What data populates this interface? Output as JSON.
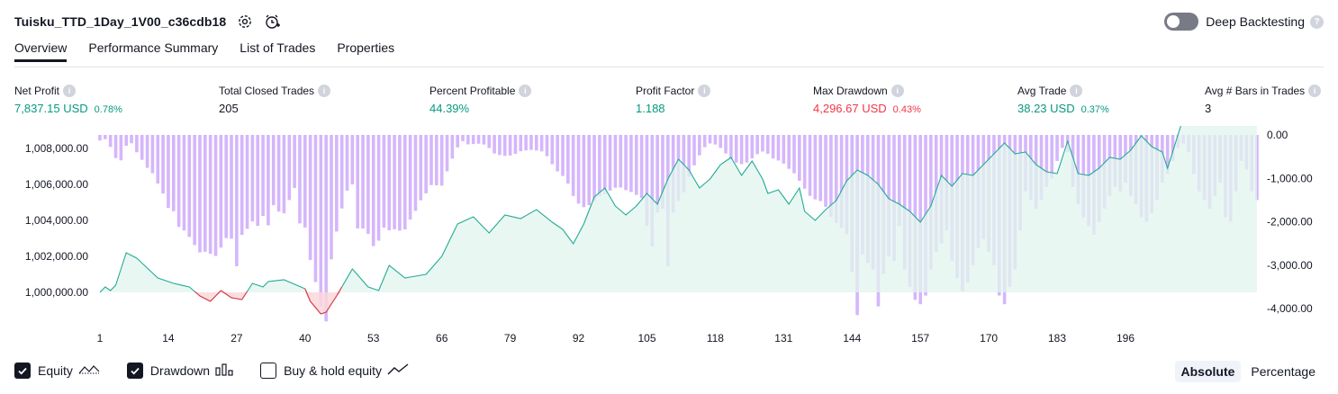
{
  "header": {
    "strategy_name": "Tuisku_TTD_1Day_1V00_c36cdb18",
    "deep_backtesting_label": "Deep Backtesting"
  },
  "tabs": [
    {
      "label": "Overview",
      "active": true
    },
    {
      "label": "Performance Summary"
    },
    {
      "label": "List of Trades"
    },
    {
      "label": "Properties"
    }
  ],
  "stats": [
    {
      "label": "Net Profit",
      "value": "7,837.15 USD",
      "pct": "0.78%",
      "color": "green"
    },
    {
      "label": "Total Closed Trades",
      "value": "205",
      "pct": "",
      "color": "dark"
    },
    {
      "label": "Percent Profitable",
      "value": "44.39%",
      "pct": "",
      "color": "green"
    },
    {
      "label": "Profit Factor",
      "value": "1.188",
      "pct": "",
      "color": "green"
    },
    {
      "label": "Max Drawdown",
      "value": "4,296.67 USD",
      "pct": "0.43%",
      "color": "red"
    },
    {
      "label": "Avg Trade",
      "value": "38.23 USD",
      "pct": "0.37%",
      "color": "green"
    },
    {
      "label": "Avg # Bars in Trades",
      "value": "3",
      "pct": "",
      "color": "dark"
    }
  ],
  "legend": {
    "equity_label": "Equity",
    "drawdown_label": "Drawdown",
    "buyhold_label": "Buy & hold equity"
  },
  "mode": {
    "absolute": "Absolute",
    "percentage": "Percentage"
  },
  "colors": {
    "equity_line": "#22ab94",
    "equity_fill": "#e1f4ee",
    "equity_neg": "#f23645",
    "drawdown_bar": "#d5b6fb",
    "accent": "#131722"
  },
  "chart_data": {
    "type": "area",
    "x_ticks": [
      "1",
      "14",
      "27",
      "40",
      "53",
      "66",
      "79",
      "92",
      "105",
      "118",
      "131",
      "144",
      "157",
      "170",
      "183",
      "196"
    ],
    "y_left_ticks": [
      "1,008,000.00",
      "1,006,000.00",
      "1,004,000.00",
      "1,002,000.00",
      "1,000,000.00"
    ],
    "y_left_values": [
      1008000,
      1006000,
      1004000,
      1002000,
      1000000
    ],
    "y_right_ticks": [
      "0.00",
      "-1,000.00",
      "-2,000.00",
      "-3,000.00",
      "-4,000.00"
    ],
    "y_right_values": [
      0,
      -1000,
      -2000,
      -3000,
      -4000
    ],
    "equity_base": 1000000,
    "equity_knots": [
      [
        1,
        1000000
      ],
      [
        2,
        1000300
      ],
      [
        3,
        1000100
      ],
      [
        4,
        1000400
      ],
      [
        6,
        1002200
      ],
      [
        8,
        1001900
      ],
      [
        12,
        1000800
      ],
      [
        15,
        1000500
      ],
      [
        18,
        1000300
      ],
      [
        20,
        999800
      ],
      [
        22,
        999500
      ],
      [
        24,
        1000100
      ],
      [
        26,
        999700
      ],
      [
        28,
        999600
      ],
      [
        30,
        1000500
      ],
      [
        32,
        1000300
      ],
      [
        33,
        1000600
      ],
      [
        36,
        1000700
      ],
      [
        40,
        1000200
      ],
      [
        41,
        999500
      ],
      [
        43,
        998800
      ],
      [
        44,
        998900
      ],
      [
        46,
        999800
      ],
      [
        49,
        1001300
      ],
      [
        52,
        1000300
      ],
      [
        54,
        1000100
      ],
      [
        56,
        1001500
      ],
      [
        59,
        1000800
      ],
      [
        63,
        1001000
      ],
      [
        66,
        1002000
      ],
      [
        69,
        1003800
      ],
      [
        72,
        1004200
      ],
      [
        75,
        1003300
      ],
      [
        78,
        1004300
      ],
      [
        81,
        1004100
      ],
      [
        84,
        1004600
      ],
      [
        87,
        1003900
      ],
      [
        89,
        1003500
      ],
      [
        91,
        1002700
      ],
      [
        93,
        1003800
      ],
      [
        95,
        1005300
      ],
      [
        97,
        1005800
      ],
      [
        99,
        1004800
      ],
      [
        101,
        1004300
      ],
      [
        103,
        1004800
      ],
      [
        105,
        1005500
      ],
      [
        107,
        1004900
      ],
      [
        109,
        1006300
      ],
      [
        111,
        1007400
      ],
      [
        113,
        1006800
      ],
      [
        115,
        1005800
      ],
      [
        117,
        1006300
      ],
      [
        119,
        1007100
      ],
      [
        121,
        1007500
      ],
      [
        123,
        1006500
      ],
      [
        125,
        1007300
      ],
      [
        127,
        1006300
      ],
      [
        128,
        1005500
      ],
      [
        130,
        1005700
      ],
      [
        132,
        1004900
      ],
      [
        134,
        1005800
      ],
      [
        135,
        1004500
      ],
      [
        137,
        1004000
      ],
      [
        139,
        1004600
      ],
      [
        141,
        1005100
      ],
      [
        143,
        1006200
      ],
      [
        145,
        1006800
      ],
      [
        147,
        1006500
      ],
      [
        149,
        1006000
      ],
      [
        151,
        1005200
      ],
      [
        153,
        1004900
      ],
      [
        155,
        1004500
      ],
      [
        157,
        1003900
      ],
      [
        159,
        1004800
      ],
      [
        161,
        1006500
      ],
      [
        163,
        1005900
      ],
      [
        165,
        1006600
      ],
      [
        167,
        1006500
      ],
      [
        169,
        1007100
      ],
      [
        171,
        1007700
      ],
      [
        173,
        1008300
      ],
      [
        175,
        1007700
      ],
      [
        177,
        1007800
      ],
      [
        179,
        1007100
      ],
      [
        181,
        1006700
      ],
      [
        183,
        1006600
      ],
      [
        185,
        1008400
      ],
      [
        187,
        1006600
      ],
      [
        189,
        1006500
      ],
      [
        191,
        1006900
      ],
      [
        193,
        1007500
      ],
      [
        195,
        1007400
      ],
      [
        197,
        1007900
      ],
      [
        199,
        1008700
      ],
      [
        201,
        1008100
      ],
      [
        203,
        1007800
      ],
      [
        204,
        1006900
      ],
      [
        205,
        1007837
      ]
    ],
    "drawdown": [
      -129,
      -98,
      -277,
      -534,
      -586,
      -251,
      -192,
      -400,
      -574,
      -758,
      -882,
      -1121,
      -1350,
      -1681,
      -1758,
      -2119,
      -2202,
      -2351,
      -2538,
      -2706,
      -2692,
      -2739,
      -2789,
      -2598,
      -2376,
      -2391,
      -3025,
      -2303,
      -2162,
      -1995,
      -2095,
      -1867,
      -2082,
      -1617,
      -1766,
      -1805,
      -1501,
      -1223,
      -2038,
      -2133,
      -2880,
      -3389,
      -3957,
      -4296,
      -2866,
      -2226,
      -1694,
      -1282,
      -1142,
      -2154,
      -2155,
      -2281,
      -2559,
      -2436,
      -2138,
      -2196,
      -2173,
      -2205,
      -2176,
      -1949,
      -1749,
      -1505,
      -1346,
      -1155,
      -1159,
      -1169,
      -839,
      -547,
      -288,
      -144,
      -217,
      -210,
      -202,
      -221,
      -301,
      -427,
      -464,
      -481,
      -473,
      -436,
      -375,
      -356,
      -345,
      -358,
      -379,
      -490,
      -675,
      -839,
      -944,
      -1121,
      -1405,
      -1583,
      -1664,
      -1619,
      -1525,
      -1410,
      -1367,
      -1282,
      -1216,
      -1212,
      -1271,
      -1314,
      -1382,
      -1455,
      -2098,
      -2566,
      -1787,
      -1702,
      -3027,
      -1792,
      -1525,
      -1325,
      -965,
      -700,
      -470,
      -282,
      -197,
      -221,
      -298,
      -427,
      -572,
      -638,
      -674,
      -637,
      -542,
      -443,
      -382,
      -434,
      -542,
      -589,
      -660,
      -781,
      -883,
      -1058,
      -1239,
      -1404,
      -1484,
      -1524,
      -1656,
      -1889,
      -2030,
      -2142,
      -2285,
      -3150,
      -4150,
      -2750,
      -2950,
      -3100,
      -3950,
      -3200,
      -2800,
      -2900,
      -2100,
      -3100,
      -3500,
      -3800,
      -3900,
      -3700,
      -3100,
      -2700,
      -2500,
      -2200,
      -2900,
      -3300,
      -3600,
      -3400,
      -3000,
      -2600,
      -2400,
      -2700,
      -3000,
      -3700,
      -3900,
      -3500,
      -3100,
      -2200,
      -1300,
      -1500,
      -1700,
      -1500,
      -1200,
      -1000,
      -600,
      -300,
      -400,
      -1200,
      -1600,
      -1900,
      -2100,
      -2300,
      -2000,
      -1700,
      -1400,
      -1200,
      -1300,
      -1100,
      -1400,
      -1600,
      -1900,
      -2000,
      -1800,
      -1500,
      -1100,
      -900,
      -600,
      -300,
      -200,
      -400,
      -900,
      -1300,
      -1500,
      -1700,
      -1400,
      -1100,
      -1900,
      -2000,
      -1300,
      -600,
      -800,
      -1300,
      -1500
    ]
  }
}
